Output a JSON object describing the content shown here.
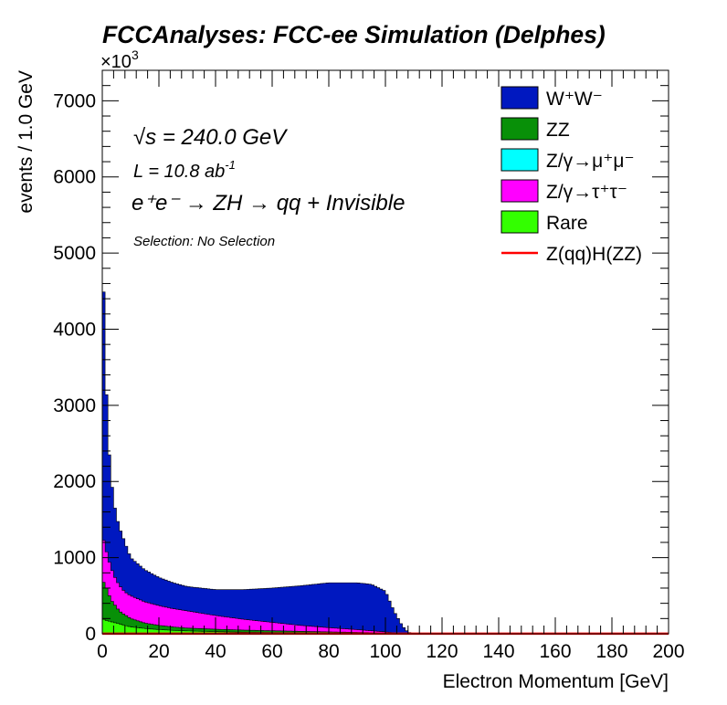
{
  "chart_data": {
    "type": "bar",
    "stacked": true,
    "title": "FCCAnalyses: FCC-ee Simulation (Delphes)",
    "xlabel": "Electron Momentum [GeV]",
    "ylabel": "events / 1.0 GeV",
    "y_exponent_label": "×10",
    "y_exponent_power": "3",
    "xlim": [
      0,
      200
    ],
    "ylim": [
      0,
      7400
    ],
    "x_ticks": [
      "0",
      "20",
      "40",
      "60",
      "80",
      "100",
      "120",
      "140",
      "160",
      "180",
      "200"
    ],
    "y_ticks": [
      "0",
      "1000",
      "2000",
      "3000",
      "4000",
      "5000",
      "6000",
      "7000"
    ],
    "x_tick_values": [
      0,
      20,
      40,
      60,
      80,
      100,
      120,
      140,
      160,
      180,
      200
    ],
    "y_tick_values": [
      0,
      1000,
      2000,
      3000,
      4000,
      5000,
      6000,
      7000
    ],
    "annotations": {
      "sqrt_s_symbol": "√s",
      "sqrt_s_value": " = 240.0 GeV",
      "lumi_prefix": "L = 10.8 ab",
      "lumi_power": "-1",
      "process": "e⁺e⁻ → ZH → qq + Invisible",
      "selection": "Selection: No Selection"
    },
    "legend_position": "top-right",
    "series": [
      {
        "name": "W⁺W⁻",
        "color": "#0018c0"
      },
      {
        "name": "ZZ",
        "color": "#089008"
      },
      {
        "name": "Z/γ→μ⁺μ⁻",
        "color": "#00ffff"
      },
      {
        "name": "Z/γ→τ⁺τ⁻",
        "color": "#ff00ff"
      },
      {
        "name": "Rare",
        "color": "#33ff00"
      },
      {
        "name": "Z(qq)H(ZZ)",
        "color": "#ff0000",
        "style": "line"
      }
    ],
    "bin_edges_approx": [
      0,
      1,
      2,
      3,
      4,
      5,
      6,
      7,
      8,
      10,
      15,
      20,
      25,
      30,
      40,
      50,
      60,
      70,
      80,
      90,
      95,
      100,
      103,
      106,
      108,
      110,
      200
    ],
    "stack_totals_approx": [
      5300,
      3680,
      2600,
      2100,
      1750,
      1550,
      1400,
      1300,
      1200,
      1000,
      840,
      740,
      670,
      620,
      580,
      580,
      600,
      630,
      670,
      670,
      650,
      560,
      300,
      100,
      20,
      5,
      0
    ],
    "zz_stack_top_approx": [
      700,
      650,
      550,
      450,
      400,
      350,
      300,
      270,
      250,
      200,
      140,
      110,
      90,
      75,
      60,
      48,
      40,
      32,
      25,
      18,
      14,
      10,
      5,
      2,
      0,
      0,
      0
    ],
    "rare_approx": [
      200,
      180,
      170,
      160,
      150,
      140,
      130,
      120,
      110,
      90,
      70,
      55,
      45,
      38,
      28,
      20,
      15,
      10,
      8,
      5,
      4,
      3,
      2,
      1,
      0,
      0,
      0
    ],
    "tautau_stack_top_approx": [
      1300,
      1150,
      1000,
      880,
      780,
      700,
      640,
      590,
      550,
      500,
      420,
      370,
      330,
      300,
      240,
      190,
      150,
      110,
      80,
      55,
      40,
      25,
      10,
      3,
      0,
      0,
      0
    ],
    "signal_approx": 2
  }
}
